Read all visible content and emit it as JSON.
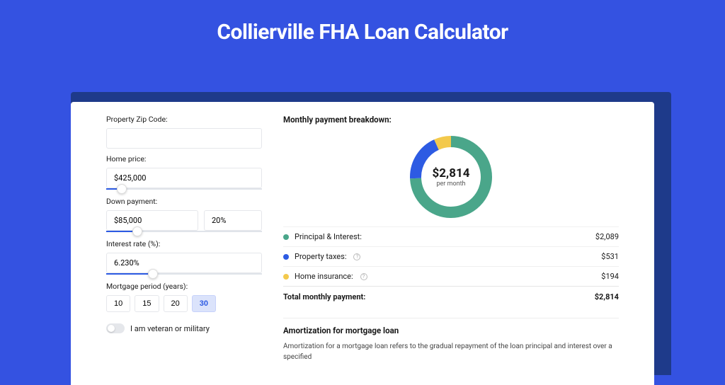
{
  "page": {
    "title": "Collierville FHA Loan Calculator"
  },
  "colors": {
    "page_bg": "#3452e1",
    "shadow": "#1e3a8a",
    "principal": "#4aa68a",
    "taxes": "#2d5be3",
    "insurance": "#f3c94c",
    "accent": "#2d5be3"
  },
  "form": {
    "zip": {
      "label": "Property Zip Code:",
      "value": ""
    },
    "home_price": {
      "label": "Home price:",
      "value": "$425,000",
      "slider_pct": 10
    },
    "down_payment": {
      "label": "Down payment:",
      "amount": "$85,000",
      "percent": "20%",
      "slider_pct": 20
    },
    "interest": {
      "label": "Interest rate (%):",
      "value": "6.230%",
      "slider_pct": 30
    },
    "period": {
      "label": "Mortgage period (years):",
      "options": [
        "10",
        "15",
        "20",
        "30"
      ],
      "selected": "30"
    },
    "veteran": {
      "label": "I am veteran or military",
      "on": false
    }
  },
  "breakdown": {
    "title": "Monthly payment breakdown:",
    "center": {
      "amount": "$2,814",
      "sub": "per month"
    },
    "items": [
      {
        "label": "Principal & Interest:",
        "value": "$2,089",
        "numeric": 2089,
        "color_key": "principal",
        "info": false
      },
      {
        "label": "Property taxes:",
        "value": "$531",
        "numeric": 531,
        "color_key": "taxes",
        "info": true
      },
      {
        "label": "Home insurance:",
        "value": "$194",
        "numeric": 194,
        "color_key": "insurance",
        "info": true
      }
    ],
    "total": {
      "label": "Total monthly payment:",
      "value": "$2,814",
      "numeric": 2814
    },
    "donut": {
      "stroke_width": 16,
      "radius": 50
    }
  },
  "amortization": {
    "title": "Amortization for mortgage loan",
    "text": "Amortization for a mortgage loan refers to the gradual repayment of the loan principal and interest over a specified"
  }
}
